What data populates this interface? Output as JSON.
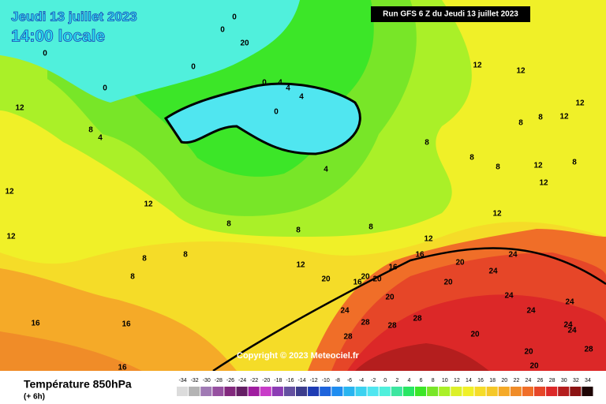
{
  "header": {
    "date": "Jeudi 13 juillet 2023",
    "time": "14:00 locale",
    "run": "Run GFS 6 Z du Jeudi 13 juillet 2023"
  },
  "copyright": "Copyright © 2023 Meteociel.fr",
  "footer": {
    "title": "Température 850hPa",
    "subtitle": "(+ 6h)"
  },
  "scale": {
    "values": [
      -34,
      -32,
      -30,
      -28,
      -26,
      -24,
      -22,
      -20,
      -18,
      -16,
      -14,
      -12,
      -10,
      -8,
      -6,
      -4,
      -2,
      0,
      2,
      4,
      6,
      8,
      10,
      12,
      14,
      16,
      18,
      20,
      22,
      24,
      26,
      28,
      30,
      32,
      34
    ],
    "colors": [
      "#dcdcdc",
      "#b4b4b4",
      "#a07ab4",
      "#9650a0",
      "#82287d",
      "#641e64",
      "#a01ea0",
      "#c83cc8",
      "#8c3cb4",
      "#6450a0",
      "#3c3c8c",
      "#1e3cb4",
      "#1e64dc",
      "#1e8cf0",
      "#28b4f0",
      "#3cd2f0",
      "#50e6f0",
      "#50f0dc",
      "#3ce6a0",
      "#28e664",
      "#3ce628",
      "#78e628",
      "#aaf028",
      "#dcf028",
      "#f0f028",
      "#f5dc28",
      "#f5c828",
      "#f5aa28",
      "#f08c28",
      "#f06e28",
      "#e64628",
      "#dc2828",
      "#b41e1e",
      "#8c1414",
      "#1e0505"
    ]
  },
  "map_labels": [
    0,
    0,
    20,
    0,
    0,
    0,
    0,
    4,
    4,
    4,
    0,
    12,
    8,
    4,
    12,
    12,
    12,
    8,
    8,
    8,
    8,
    8,
    12,
    16,
    16,
    16,
    12,
    12,
    12,
    12,
    8,
    8,
    8,
    8,
    8,
    12,
    12,
    12,
    8,
    8,
    12,
    16,
    20,
    24,
    24,
    20,
    20,
    16,
    20,
    20,
    16,
    20,
    24,
    28,
    28,
    28,
    28,
    20,
    24,
    24,
    24,
    24,
    24,
    28,
    20,
    20,
    4
  ]
}
